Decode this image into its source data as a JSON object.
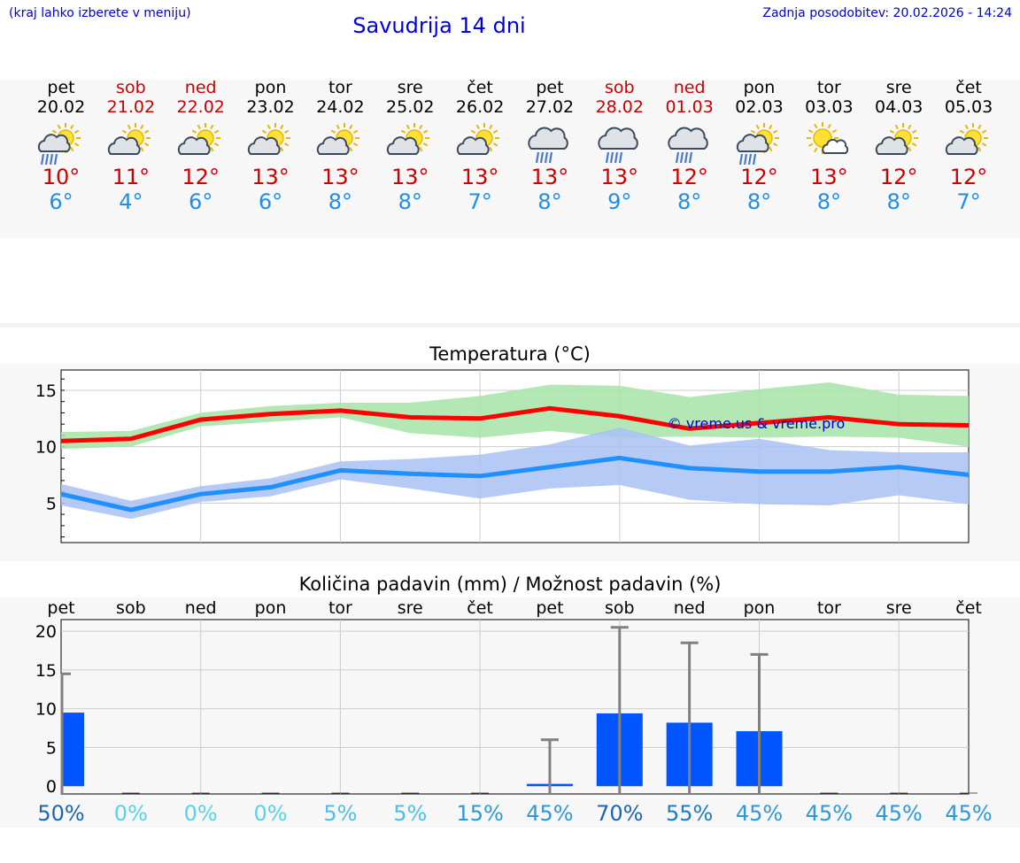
{
  "header": {
    "menu_hint": "(kraj lahko izberete v meniju)",
    "title": "Savudrija 14 dni",
    "last_update": "Zadnja posodobitev: 20.02.2026 - 14:24"
  },
  "days": [
    {
      "name": "pet",
      "date": "20.02",
      "weekend": false,
      "icon": "sun-cloud-rain-icon",
      "tmax": "10°",
      "tmin": "6°"
    },
    {
      "name": "sob",
      "date": "21.02",
      "weekend": true,
      "icon": "sun-cloud-icon",
      "tmax": "11°",
      "tmin": "4°"
    },
    {
      "name": "ned",
      "date": "22.02",
      "weekend": true,
      "icon": "sun-cloud-icon",
      "tmax": "12°",
      "tmin": "6°"
    },
    {
      "name": "pon",
      "date": "23.02",
      "weekend": false,
      "icon": "sun-cloud-icon",
      "tmax": "13°",
      "tmin": "6°"
    },
    {
      "name": "tor",
      "date": "24.02",
      "weekend": false,
      "icon": "sun-cloud-icon",
      "tmax": "13°",
      "tmin": "8°"
    },
    {
      "name": "sre",
      "date": "25.02",
      "weekend": false,
      "icon": "sun-cloud-icon",
      "tmax": "13°",
      "tmin": "8°"
    },
    {
      "name": "čet",
      "date": "26.02",
      "weekend": false,
      "icon": "sun-cloud-icon",
      "tmax": "13°",
      "tmin": "7°"
    },
    {
      "name": "pet",
      "date": "27.02",
      "weekend": false,
      "icon": "cloud-rain-icon",
      "tmax": "13°",
      "tmin": "8°"
    },
    {
      "name": "sob",
      "date": "28.02",
      "weekend": true,
      "icon": "cloud-rain-icon",
      "tmax": "13°",
      "tmin": "9°"
    },
    {
      "name": "ned",
      "date": "01.03",
      "weekend": true,
      "icon": "cloud-rain-icon",
      "tmax": "12°",
      "tmin": "8°"
    },
    {
      "name": "pon",
      "date": "02.03",
      "weekend": false,
      "icon": "sun-cloud-rain-icon",
      "tmax": "12°",
      "tmin": "8°"
    },
    {
      "name": "tor",
      "date": "03.03",
      "weekend": false,
      "icon": "sun-small-cloud-icon",
      "tmax": "13°",
      "tmin": "8°"
    },
    {
      "name": "sre",
      "date": "04.03",
      "weekend": false,
      "icon": "sun-cloud-icon",
      "tmax": "12°",
      "tmin": "8°"
    },
    {
      "name": "čet",
      "date": "05.03",
      "weekend": false,
      "icon": "sun-cloud-icon",
      "tmax": "12°",
      "tmin": "7°"
    }
  ],
  "colors": {
    "weekend": "#cc0000",
    "max_line": "#ff0000",
    "max_band": "#a6e3a6",
    "min_line": "#1e90ff",
    "min_band": "#a9c1f5",
    "bar": "#0055ff",
    "errbar": "#808080"
  },
  "chart_data": [
    {
      "type": "line",
      "title": "Temperatura (°C)",
      "categories": [
        "pet",
        "sob",
        "ned",
        "pon",
        "tor",
        "sre",
        "čet",
        "pet",
        "sob",
        "ned",
        "pon",
        "tor",
        "sre",
        "čet"
      ],
      "ylim": [
        1.5,
        16.8
      ],
      "yticks": [
        5,
        10,
        15
      ],
      "grid": true,
      "watermark": "© vreme.us & vreme.pro",
      "series": [
        {
          "name": "max",
          "values": [
            10.5,
            10.7,
            12.4,
            12.9,
            13.2,
            12.6,
            12.5,
            13.4,
            12.7,
            11.6,
            12.1,
            12.6,
            12.0,
            11.9
          ],
          "band_low": [
            9.8,
            10.0,
            11.8,
            12.2,
            12.6,
            11.2,
            10.8,
            11.4,
            10.8,
            10.9,
            10.8,
            10.9,
            10.8,
            10.0
          ],
          "band_high": [
            11.3,
            11.4,
            13.0,
            13.6,
            13.9,
            13.9,
            14.5,
            15.5,
            15.4,
            14.4,
            15.1,
            15.7,
            14.6,
            14.5
          ]
        },
        {
          "name": "min",
          "values": [
            5.8,
            4.4,
            5.8,
            6.4,
            7.9,
            7.6,
            7.4,
            8.2,
            9.0,
            8.1,
            7.8,
            7.8,
            8.2,
            7.5
          ],
          "band_low": [
            4.8,
            3.6,
            5.1,
            5.6,
            7.1,
            6.3,
            5.4,
            6.3,
            6.6,
            5.3,
            4.9,
            4.8,
            5.7,
            4.9
          ],
          "band_high": [
            6.7,
            5.2,
            6.5,
            7.2,
            8.7,
            8.9,
            9.3,
            10.2,
            11.7,
            10.1,
            10.7,
            9.7,
            9.5,
            9.5
          ]
        }
      ]
    },
    {
      "type": "bar",
      "title": "Količina padavin (mm) / Možnost padavin (%)",
      "categories": [
        "pet",
        "sob",
        "ned",
        "pon",
        "tor",
        "sre",
        "čet",
        "pet",
        "sob",
        "ned",
        "pon",
        "tor",
        "sre",
        "čet"
      ],
      "values": [
        9.5,
        0,
        0,
        0,
        0,
        0,
        0,
        0.3,
        9.4,
        8.2,
        7.1,
        0,
        0,
        0
      ],
      "error_high": [
        14.5,
        0,
        0,
        0,
        0,
        0,
        0,
        6.0,
        20.5,
        18.5,
        17.0,
        0,
        0,
        0
      ],
      "probability_labels": [
        "50%",
        "0%",
        "0%",
        "0%",
        "5%",
        "5%",
        "15%",
        "45%",
        "70%",
        "55%",
        "45%",
        "45%",
        "45%",
        "45%"
      ],
      "probability_colors": [
        "#1a66b3",
        "#5ad2e6",
        "#5ad2e6",
        "#5ad2e6",
        "#4ec0e6",
        "#4ec0e6",
        "#2e99d6",
        "#2e99d6",
        "#1a66b3",
        "#1a7dc4",
        "#2e99d6",
        "#2e99d6",
        "#2e99d6",
        "#2e99d6"
      ],
      "ylim": [
        -1,
        21.5
      ],
      "yticks": [
        0,
        5,
        10,
        15,
        20
      ],
      "grid": true
    }
  ]
}
